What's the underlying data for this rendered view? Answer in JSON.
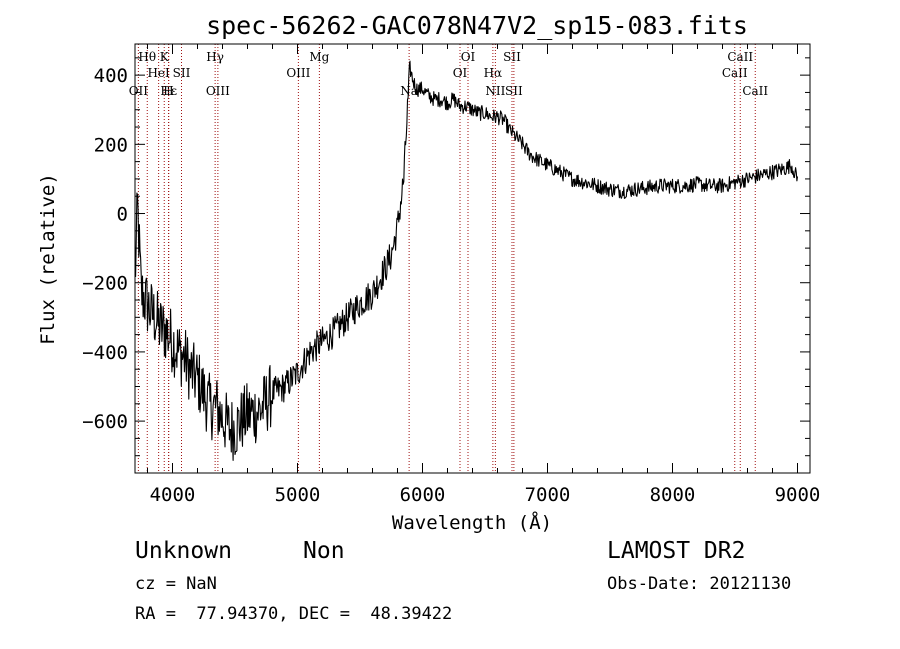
{
  "chart_data": {
    "type": "line",
    "title": "spec-56262-GAC078N47V2_sp15-083.fits",
    "xlabel": "Wavelength (Å)",
    "ylabel": "Flux (relative)",
    "xlim": [
      3700,
      9100
    ],
    "ylim": [
      -750,
      490
    ],
    "x_ticks": [
      4000,
      5000,
      6000,
      7000,
      8000,
      9000
    ],
    "y_ticks": [
      -600,
      -400,
      -200,
      0,
      200,
      400
    ],
    "x_tick_labels": [
      "4000",
      "5000",
      "6000",
      "7000",
      "8000",
      "9000"
    ],
    "y_tick_labels": [
      "−600",
      "−400",
      "−200",
      "0",
      "200",
      "400"
    ],
    "grid": false,
    "series": [
      {
        "x": [
          3700,
          3720,
          3750,
          3780,
          3820,
          3860,
          3900,
          3950,
          4000,
          4050,
          4100,
          4150,
          4200,
          4250,
          4300,
          4350,
          4400,
          4450,
          4500,
          4550,
          4600,
          4700,
          4800,
          4900,
          5000,
          5100,
          5200,
          5300,
          5400,
          5500,
          5600,
          5700,
          5750,
          5800,
          5850,
          5880,
          5900,
          5920,
          5950,
          6000,
          6050,
          6100,
          6150,
          6200,
          6250,
          6300,
          6350,
          6400,
          6450,
          6500,
          6550,
          6600,
          6650,
          6700,
          6750,
          6800,
          6850,
          6900,
          7000,
          7100,
          7200,
          7300,
          7400,
          7500,
          7600,
          7700,
          7800,
          7900,
          8000,
          8100,
          8200,
          8300,
          8400,
          8500,
          8600,
          8700,
          8800,
          8900,
          8950,
          9000
        ],
        "y": [
          -200,
          20,
          -230,
          -250,
          -280,
          -300,
          -330,
          -340,
          -370,
          -400,
          -420,
          -460,
          -480,
          -520,
          -560,
          -560,
          -590,
          -620,
          -620,
          -600,
          -580,
          -570,
          -520,
          -500,
          -460,
          -400,
          -370,
          -340,
          -300,
          -260,
          -230,
          -160,
          -120,
          -40,
          100,
          300,
          420,
          390,
          360,
          360,
          340,
          330,
          330,
          320,
          330,
          310,
          310,
          300,
          290,
          290,
          280,
          280,
          270,
          240,
          220,
          200,
          175,
          160,
          140,
          120,
          100,
          90,
          80,
          70,
          65,
          70,
          75,
          80,
          80,
          80,
          85,
          80,
          80,
          90,
          100,
          110,
          120,
          130,
          140,
          100
        ]
      }
    ],
    "lines": [
      {
        "label": "Hθ",
        "x": 3798,
        "row": 1
      },
      {
        "label": "OII",
        "x": 3727,
        "row": 3
      },
      {
        "label": "HeI",
        "x": 3889,
        "row": 2
      },
      {
        "label": "Hε",
        "x": 3970,
        "row": 3
      },
      {
        "label": "K",
        "x": 3934,
        "row": 1
      },
      {
        "label": "H",
        "x": 3968,
        "row": 3
      },
      {
        "label": "SII",
        "x": 4072,
        "row": 2
      },
      {
        "label": "Hγ",
        "x": 4341,
        "row": 1
      },
      {
        "label": "OIII",
        "x": 4363,
        "row": 3
      },
      {
        "label": "OIII",
        "x": 5007,
        "row": 2
      },
      {
        "label": "Mg",
        "x": 5175,
        "row": 1
      },
      {
        "label": "Na",
        "x": 5893,
        "row": 3
      },
      {
        "label": "OI",
        "x": 6300,
        "row": 2
      },
      {
        "label": "OI",
        "x": 6364,
        "row": 1
      },
      {
        "label": "Hα",
        "x": 6563,
        "row": 2
      },
      {
        "label": "NII",
        "x": 6583,
        "row": 3
      },
      {
        "label": "SII",
        "x": 6716,
        "row": 1
      },
      {
        "label": "SII",
        "x": 6731,
        "row": 3
      },
      {
        "label": "CaII",
        "x": 8498,
        "row": 2
      },
      {
        "label": "CaII",
        "x": 8542,
        "row": 1
      },
      {
        "label": "CaII",
        "x": 8662,
        "row": 3
      }
    ]
  },
  "info": {
    "class": "Unknown",
    "subclass": "Non",
    "survey": "LAMOST DR2",
    "cz": "cz = NaN",
    "obs_date": "Obs-Date: 20121130",
    "coords": "RA =  77.94370, DEC =  48.39422"
  },
  "colors": {
    "spectrum": "#000000",
    "line_marker": "#a01010",
    "axis": "#000000"
  }
}
